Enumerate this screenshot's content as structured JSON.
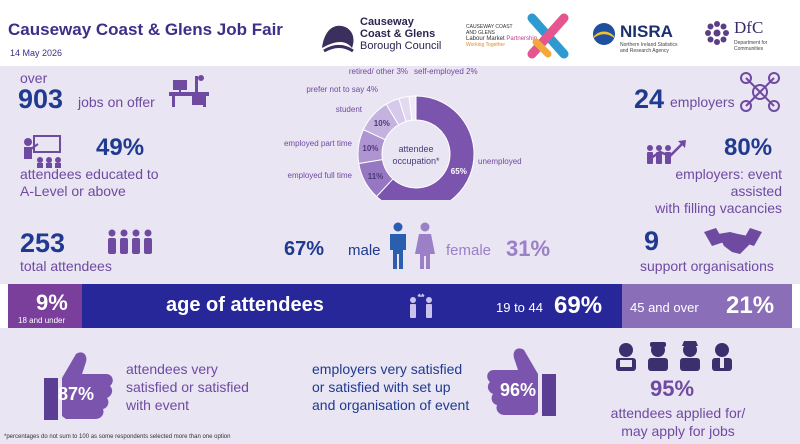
{
  "header": {
    "title": "Causeway Coast & Glens Job Fair",
    "date": "14 May 2026",
    "council": {
      "line1": "Causeway",
      "line2": "Coast & Glens",
      "line3": "Borough Council"
    },
    "lmp": {
      "line1": "CAUSEWAY COAST",
      "line2": "AND GLENS",
      "line3": "Labour Market",
      "line3b": "Partnership",
      "line4": "Working Together"
    },
    "nisra": {
      "name": "NISRA",
      "sub1": "Northern Ireland Statistics",
      "sub2": "and Research Agency"
    },
    "dfc": {
      "name": "DfC",
      "sub1": "Department for",
      "sub2": "Communities"
    }
  },
  "stats": {
    "jobs": {
      "prefix": "over",
      "value": "903",
      "label": "jobs on offer"
    },
    "employers": {
      "value": "24",
      "label": "employers"
    },
    "education": {
      "value": "49%",
      "label1": "attendees educated to",
      "label2": "A-Level or above"
    },
    "employers_assisted": {
      "value": "80%",
      "label1": "employers: event assisted",
      "label2": "with filling vacancies"
    },
    "attendees": {
      "value": "253",
      "label": "total attendees"
    },
    "support": {
      "value": "9",
      "label": "support organisations"
    },
    "gender": {
      "male_pct": "67%",
      "male_label": "male",
      "female_label": "female",
      "female_pct": "31%"
    }
  },
  "age": {
    "young_pct": "9%",
    "young_label": "18 and under",
    "title": "age of attendees",
    "mid_label": "19 to 44",
    "mid_pct": "69%",
    "old_label": "45 and over",
    "old_pct": "21%"
  },
  "satisfaction": {
    "attendee_pct": "87%",
    "attendee_l1": "attendees very",
    "attendee_l2": "satisfied or satisfied",
    "attendee_l3": "with event",
    "employer_l1": "employers very satisfied",
    "employer_l2": "or satisfied with set up",
    "employer_l3": "and organisation of event",
    "employer_pct": "96%",
    "applied_pct": "95%",
    "applied_l1": "attendees applied for/",
    "applied_l2": "may apply for jobs"
  },
  "footnote": "*percentages do not sum to 100 as some respondents selected more than one option",
  "chart_data": {
    "type": "pie",
    "title": "attendee occupation*",
    "title_l1": "attendee",
    "title_l2": "occupation*",
    "categories": [
      "unemployed",
      "employed full time",
      "employed part time",
      "student",
      "prefer not to say",
      "retired/ other",
      "self-employed"
    ],
    "values": [
      65,
      11,
      10,
      10,
      4,
      3,
      2
    ],
    "value_labels": [
      "65%",
      "11%",
      "10%",
      "10%",
      "4%",
      "3%",
      "2%"
    ],
    "outer_labels": [
      "unemployed",
      "employed full time",
      "employed part time",
      "student",
      "prefer not to say 4%",
      "retired/ other 3%",
      "self-employed 2%"
    ],
    "colors": [
      "#7b55ad",
      "#9677c2",
      "#ae95d1",
      "#c5b3df",
      "#d6c9ea",
      "#e3d9f1",
      "#efe9f8"
    ]
  }
}
